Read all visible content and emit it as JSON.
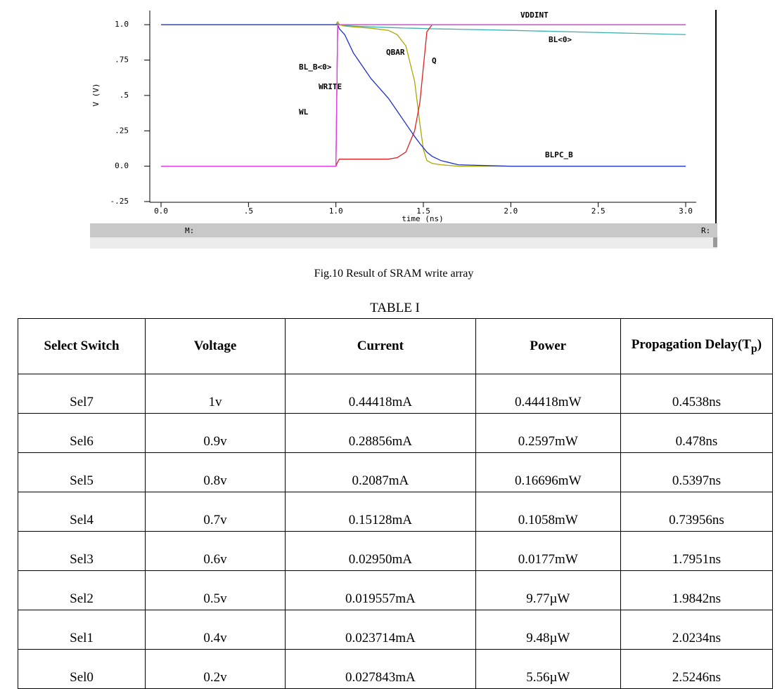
{
  "chart_data": {
    "type": "line",
    "y_label": "V (V)",
    "x_label": "time (ns)",
    "x": [
      0,
      0.5,
      0.99,
      1.0,
      1.01,
      1.02,
      1.05,
      1.1,
      1.2,
      1.3,
      1.35,
      1.4,
      1.45,
      1.48,
      1.5,
      1.52,
      1.55,
      1.6,
      1.7,
      2.0,
      2.5,
      3.0
    ],
    "series": [
      {
        "name": "VDDINT",
        "color": "#6b8e6b",
        "values": [
          1,
          1,
          1,
          1,
          1,
          1,
          1,
          1,
          1,
          1,
          1,
          1,
          1,
          1,
          1,
          1,
          1,
          1,
          1,
          1,
          1,
          1
        ]
      },
      {
        "name": "BL<0>",
        "color": "#3cb0b0",
        "values": [
          1,
          1,
          1,
          1,
          1.01,
          1.0,
          0.995,
          0.99,
          0.985,
          0.98,
          0.978,
          0.976,
          0.975,
          0.974,
          0.973,
          0.972,
          0.971,
          0.97,
          0.968,
          0.96,
          0.945,
          0.93
        ]
      },
      {
        "name": "QBAR",
        "color": "#a8a800",
        "values": [
          1,
          1,
          1,
          1,
          1.02,
          1.0,
          0.99,
          0.985,
          0.975,
          0.96,
          0.93,
          0.85,
          0.6,
          0.3,
          0.12,
          0.04,
          0.02,
          0.01,
          0,
          0,
          0,
          0
        ]
      },
      {
        "name": "Q",
        "color": "#e02020",
        "values": [
          0,
          0,
          0,
          0,
          0.03,
          0.05,
          0.05,
          0.05,
          0.05,
          0.05,
          0.06,
          0.1,
          0.25,
          0.45,
          0.7,
          0.95,
          1.0,
          1.0,
          1.0,
          1.0,
          1.0,
          1.0
        ]
      },
      {
        "name": "BL_B<0>",
        "color": "#1c2fd0",
        "values": [
          1,
          1,
          1,
          1,
          1.0,
          0.97,
          0.93,
          0.8,
          0.62,
          0.48,
          0.39,
          0.3,
          0.21,
          0.16,
          0.13,
          0.1,
          0.07,
          0.04,
          0.01,
          0,
          0,
          0
        ]
      },
      {
        "name": "WRITE",
        "color": "#e040e0",
        "values": [
          0,
          0,
          0,
          0,
          1,
          1,
          1,
          1,
          1,
          1,
          1,
          1,
          1,
          1,
          1,
          1,
          1,
          1,
          1,
          1,
          1,
          1
        ]
      },
      {
        "name": "WL",
        "color": "#e040e0",
        "values": [
          0,
          0,
          0,
          0,
          1,
          1,
          1,
          1,
          1,
          1,
          1,
          1,
          1,
          1,
          1,
          1,
          1,
          1,
          1,
          1,
          1,
          1
        ]
      },
      {
        "name": "BLPC_B",
        "color": "#e040e0",
        "values": [
          0,
          0,
          0,
          0,
          1,
          1,
          1,
          1,
          1,
          1,
          1,
          1,
          1,
          1,
          1,
          1,
          1,
          1,
          1,
          1,
          1,
          1
        ]
      }
    ],
    "xlim": [
      0,
      3
    ],
    "ylim": [
      -0.25,
      1.1
    ],
    "xticks": [
      {
        "value": 0,
        "label": "0.0"
      },
      {
        "value": 0.5,
        "label": ".5"
      },
      {
        "value": 1,
        "label": "1.0"
      },
      1.5,
      {
        "value": 2,
        "label": "2.0"
      },
      2.5,
      {
        "value": 3,
        "label": "3.0"
      }
    ],
    "yticks": [
      {
        "value": -0.25,
        "label": "-.25"
      },
      {
        "value": 0,
        "label": "0.0"
      },
      {
        "value": 0.25,
        "label": ".25"
      },
      {
        "value": 0.5,
        "label": ".5"
      },
      {
        "value": 0.75,
        "label": ".75"
      },
      {
        "value": 1,
        "label": "1.0"
      }
    ]
  },
  "viewer": {
    "left_marker": "M:",
    "right_marker": "R:"
  },
  "caption": "Fig.10 Result of SRAM write array",
  "table": {
    "title": "TABLE I",
    "columns": [
      "Select Switch",
      "Voltage",
      "Current",
      "Power",
      {
        "text": "Propagation Delay(T",
        "sub": "p",
        "tail": ")"
      }
    ],
    "rows": [
      [
        "Sel7",
        "1v",
        "0.44418mA",
        "0.44418mW",
        "0.4538ns"
      ],
      [
        "Sel6",
        "0.9v",
        "0.28856mA",
        "0.2597mW",
        "0.478ns"
      ],
      [
        "Sel5",
        "0.8v",
        "0.2087mA",
        "0.16696mW",
        "0.5397ns"
      ],
      [
        "Sel4",
        "0.7v",
        "0.15128mA",
        "0.1058mW",
        "0.73956ns"
      ],
      [
        "Sel3",
        "0.6v",
        "0.02950mA",
        "0.0177mW",
        "1.7951ns"
      ],
      [
        "Sel2",
        "0.5v",
        "0.019557mA",
        "9.77µW",
        "1.9842ns"
      ],
      [
        "Sel1",
        "0.4v",
        "0.023714mA",
        "9.48µW",
        "2.0234ns"
      ],
      [
        "Sel0",
        "0.2v",
        "0.027843mA",
        "5.56µW",
        "2.5246ns"
      ]
    ]
  }
}
